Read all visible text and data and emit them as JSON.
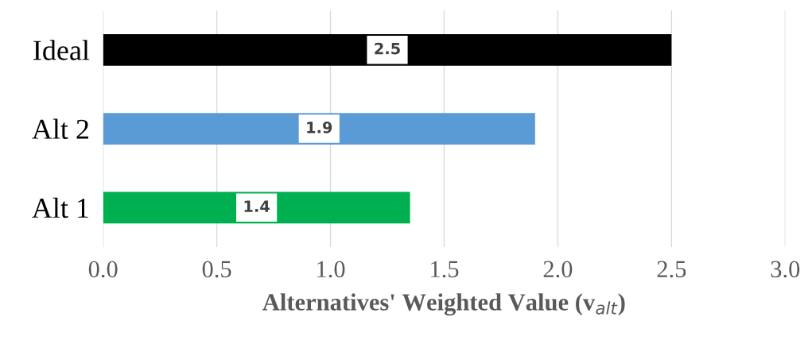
{
  "chart_data": {
    "type": "bar",
    "orientation": "horizontal",
    "categories": [
      "Ideal",
      "Alt 2",
      "Alt 1"
    ],
    "values": [
      2.5,
      1.9,
      1.35
    ],
    "colors": [
      "#000000",
      "#5b9bd5",
      "#00b050"
    ],
    "value_labels": [
      "2.5",
      "1.9",
      "1.4"
    ],
    "xlabel": "Alternatives' Weighted Value (v$_{alt}$)",
    "xlim": [
      0,
      3.0
    ],
    "xticks": [
      {
        "value": 0,
        "label": "0.0"
      },
      {
        "value": 0.5,
        "label": "0.5"
      },
      {
        "value": 1.0,
        "label": "1.0"
      },
      {
        "value": 1.5,
        "label": "1.5"
      },
      {
        "value": 2.0,
        "label": "2.0"
      },
      {
        "value": 2.5,
        "label": "2.5"
      },
      {
        "value": 3.0,
        "label": "3.0"
      }
    ],
    "grid": "x"
  }
}
